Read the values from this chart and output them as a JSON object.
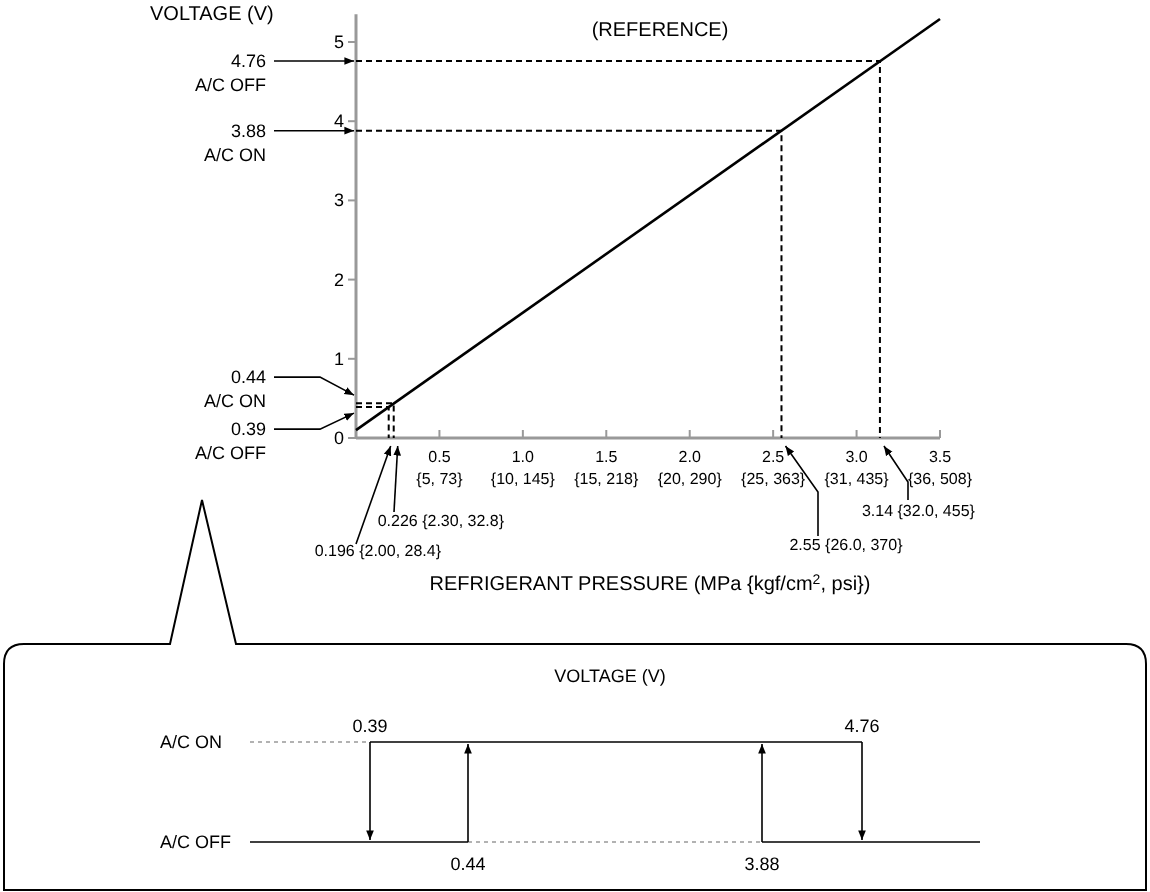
{
  "chart_data": [
    {
      "type": "line",
      "title": "(REFERENCE)",
      "xlabel": "REFRIGERANT PRESSURE (MPa {kgf/cm$^{2}$, psi})",
      "ylabel": "VOLTAGE (V)",
      "xlim": [
        0,
        3.5
      ],
      "ylim": [
        0,
        5.35
      ],
      "xticks": [
        0.5,
        {
          "value": 1,
          "label": "1.0"
        },
        1.5,
        {
          "value": 2,
          "label": "2.0"
        },
        2.5,
        {
          "value": 3,
          "label": "3.0"
        },
        3.5
      ],
      "yticks": [
        0,
        1,
        2,
        3,
        4,
        5
      ],
      "series": [
        {
          "color": "#000000",
          "x": [
            0,
            3.5
          ],
          "values": [
            0.1,
            5.29
          ]
        },
        {
          "color": "#000000",
          "line_style": "dashed",
          "x": [
            0,
            3.14,
            3.14
          ],
          "values": [
            4.76,
            4.76,
            0
          ]
        },
        {
          "color": "#000000",
          "line_style": "dashed",
          "x": [
            0,
            2.55,
            2.55
          ],
          "values": [
            3.88,
            3.88,
            0
          ]
        },
        {
          "color": "#000000",
          "line_style": "dashed",
          "x": [
            0,
            0.226,
            0.226
          ],
          "values": [
            0.44,
            0.44,
            0
          ]
        },
        {
          "color": "#000000",
          "line_style": "dashed",
          "x": [
            0,
            0.196,
            0.196
          ],
          "values": [
            0.39,
            0.39,
            0
          ]
        }
      ],
      "annotations": [
        "4.76\nA/C OFF",
        "3.88\nA/C ON",
        {
          "text": "0.44\nA/C ON",
          "x": 0,
          "y": 0.44
        },
        {
          "text": "0.39\nA/C OFF",
          "x": 0,
          "y": 0.39
        },
        {
          "text": "0.196 {2.00, 28.4}",
          "x": 0.196,
          "y": 0
        },
        {
          "text": "0.226 {2.30, 32.8}",
          "x": 0.226,
          "y": 0
        },
        {
          "text": "2.55 {26.0, 370}",
          "x": 2.55,
          "y": 0
        },
        {
          "text": "3.14 {32.0, 455}",
          "x": 3.14,
          "y": 0
        },
        "{5, 73}",
        "{10, 145}",
        "{15, 218}",
        "{20, 290}",
        "{25, 363}",
        "{31, 435}",
        "{36, 508}"
      ]
    },
    {
      "type": "other",
      "title": "VOLTAGE (V)",
      "categories": [
        "A/C ON",
        "A/C OFF"
      ],
      "annotations": [
        "0.39",
        "0.44",
        "3.88",
        "4.76"
      ]
    }
  ]
}
